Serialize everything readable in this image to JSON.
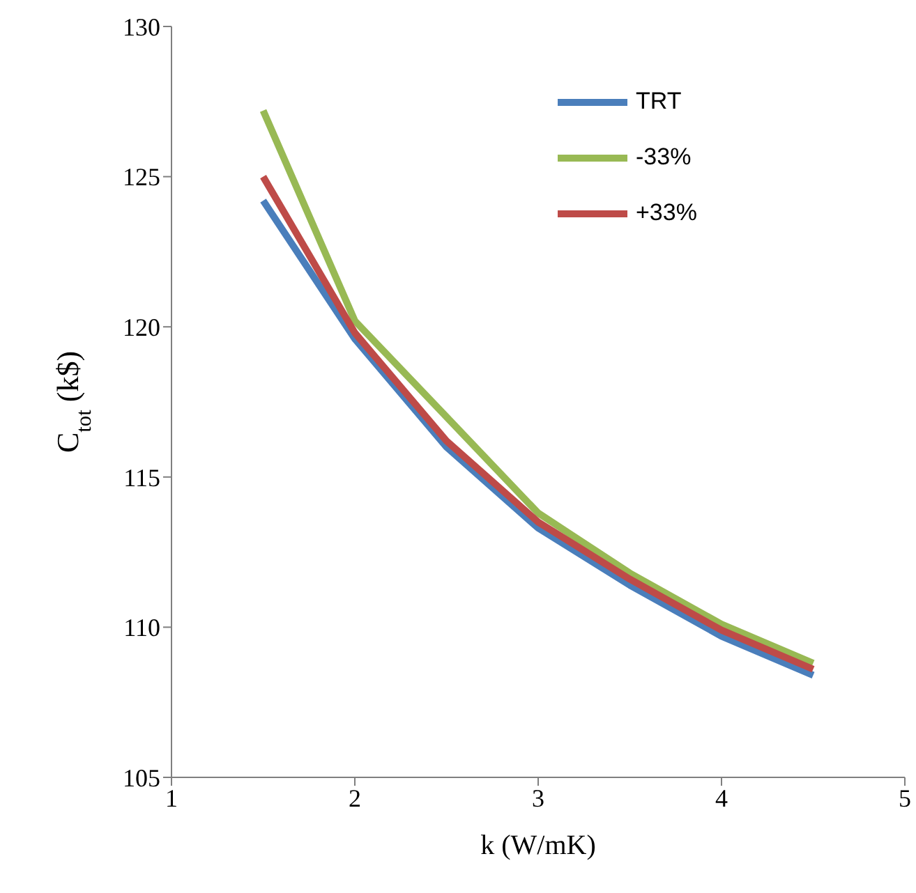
{
  "chart_data": {
    "type": "line",
    "xlabel": "k (W/mK)",
    "ylabel": "C$_{tot}$  (k$)",
    "x": [
      1.5,
      2,
      2.5,
      3,
      3.5,
      4,
      4.5
    ],
    "series": [
      {
        "name": "TRT",
        "color": "#4a7ebb",
        "values": [
          124.2,
          119.6,
          116.0,
          113.3,
          111.4,
          109.7,
          108.4
        ]
      },
      {
        "name": "-33%",
        "color": "#98b954",
        "values": [
          127.2,
          120.2,
          117.0,
          113.8,
          111.8,
          110.1,
          108.8
        ]
      },
      {
        "name": "+33%",
        "color": "#be4b48",
        "values": [
          125.0,
          119.8,
          116.2,
          113.5,
          111.6,
          109.9,
          108.6
        ]
      }
    ],
    "xlim": [
      1,
      5
    ],
    "xticks": [
      1,
      2,
      3,
      4,
      5
    ],
    "ylim": [
      105,
      130
    ],
    "yticks": [
      105,
      110,
      115,
      120,
      125,
      130
    ],
    "grid": false,
    "legend": "top right",
    "marker": "none",
    "line_style": "solid"
  }
}
